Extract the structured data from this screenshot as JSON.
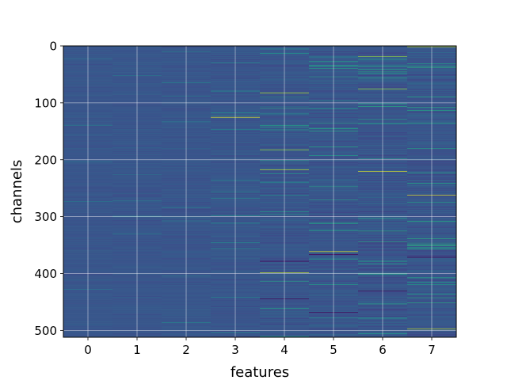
{
  "chart_data": {
    "type": "heatmap",
    "title": "",
    "xlabel": "features",
    "ylabel": "channels",
    "x_categories": [
      "0",
      "1",
      "2",
      "3",
      "4",
      "5",
      "6",
      "7"
    ],
    "y_ticks": [
      "0",
      "100",
      "200",
      "300",
      "400",
      "500"
    ],
    "y_range": [
      0,
      512
    ],
    "rows": 512,
    "columns": 8,
    "colormap": "viridis",
    "grid": true,
    "legend": "none",
    "column_value_spread": [
      0.5,
      0.55,
      0.65,
      0.8,
      1.0,
      1.1,
      1.2,
      1.3
    ],
    "highlighted_cells": [
      {
        "feature": 3,
        "channel": 125,
        "value": 0.95
      },
      {
        "feature": 4,
        "channel": 82,
        "value": 0.9
      },
      {
        "feature": 4,
        "channel": 182,
        "value": 0.85
      },
      {
        "feature": 4,
        "channel": 217,
        "value": 0.9
      },
      {
        "feature": 4,
        "channel": 378,
        "value": 0.0
      },
      {
        "feature": 4,
        "channel": 398,
        "value": 0.9
      },
      {
        "feature": 4,
        "channel": 444,
        "value": 0.0
      },
      {
        "feature": 5,
        "channel": 361,
        "value": 0.95
      },
      {
        "feature": 5,
        "channel": 366,
        "value": 0.0
      },
      {
        "feature": 5,
        "channel": 468,
        "value": 0.0
      },
      {
        "feature": 6,
        "channel": 18,
        "value": 0.85
      },
      {
        "feature": 6,
        "channel": 75,
        "value": 0.85
      },
      {
        "feature": 6,
        "channel": 220,
        "value": 0.95
      },
      {
        "feature": 6,
        "channel": 430,
        "value": 0.0
      },
      {
        "feature": 7,
        "channel": 1,
        "value": 0.9
      },
      {
        "feature": 7,
        "channel": 262,
        "value": 0.95
      },
      {
        "feature": 7,
        "channel": 371,
        "value": 0.0
      },
      {
        "feature": 7,
        "channel": 497,
        "value": 0.9
      }
    ]
  }
}
